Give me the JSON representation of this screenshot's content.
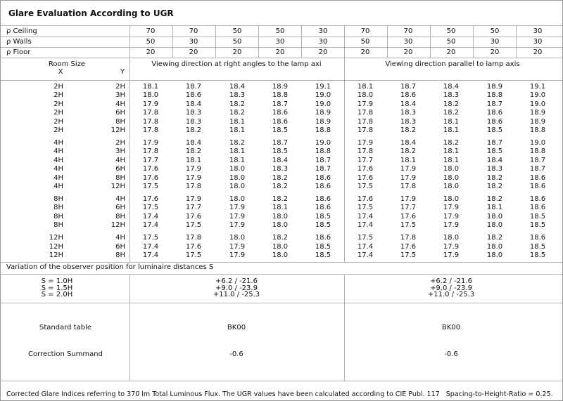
{
  "title": "Glare Evaluation According to UGR",
  "reflectances": [
    {
      "label": "ρ Ceiling",
      "values": [
        "70",
        "70",
        "50",
        "50",
        "30",
        "70",
        "70",
        "50",
        "50",
        "30"
      ]
    },
    {
      "label": "ρ Walls",
      "values": [
        "50",
        "30",
        "50",
        "30",
        "30",
        "50",
        "30",
        "50",
        "30",
        "30"
      ]
    },
    {
      "label": "ρ Floor",
      "values": [
        "20",
        "20",
        "20",
        "20",
        "20",
        "20",
        "20",
        "20",
        "20",
        "20"
      ]
    }
  ],
  "header": {
    "room_size": "Room Size",
    "x": "X",
    "y": "Y",
    "view_right": "Viewing direction at right angles to the lamp axi",
    "view_parallel": "Viewing direction parallel to lamp axis"
  },
  "groups": [
    [
      {
        "x": "2H",
        "y": "2H",
        "values": [
          "18.1",
          "18.7",
          "18.4",
          "18.9",
          "19.1",
          "18.1",
          "18.7",
          "18.4",
          "18.9",
          "19.1"
        ]
      },
      {
        "x": "2H",
        "y": "3H",
        "values": [
          "18.0",
          "18.6",
          "18.3",
          "18.8",
          "19.0",
          "18.0",
          "18.6",
          "18.3",
          "18.8",
          "19.0"
        ]
      },
      {
        "x": "2H",
        "y": "4H",
        "values": [
          "17.9",
          "18.4",
          "18.2",
          "18.7",
          "19.0",
          "17.9",
          "18.4",
          "18.2",
          "18.7",
          "19.0"
        ]
      },
      {
        "x": "2H",
        "y": "6H",
        "values": [
          "17.8",
          "18.3",
          "18.2",
          "18.6",
          "18.9",
          "17.8",
          "18.3",
          "18.2",
          "18.6",
          "18.9"
        ]
      },
      {
        "x": "2H",
        "y": "8H",
        "values": [
          "17.8",
          "18.3",
          "18.1",
          "18.6",
          "18.9",
          "17.8",
          "18.3",
          "18.1",
          "18.6",
          "18.9"
        ]
      },
      {
        "x": "2H",
        "y": "12H",
        "values": [
          "17.8",
          "18.2",
          "18.1",
          "18.5",
          "18.8",
          "17.8",
          "18.2",
          "18.1",
          "18.5",
          "18.8"
        ]
      }
    ],
    [
      {
        "x": "4H",
        "y": "2H",
        "values": [
          "17.9",
          "18.4",
          "18.2",
          "18.7",
          "19.0",
          "17.9",
          "18.4",
          "18.2",
          "18.7",
          "19.0"
        ]
      },
      {
        "x": "4H",
        "y": "3H",
        "values": [
          "17.8",
          "18.2",
          "18.1",
          "18.5",
          "18.8",
          "17.8",
          "18.2",
          "18.1",
          "18.5",
          "18.8"
        ]
      },
      {
        "x": "4H",
        "y": "4H",
        "values": [
          "17.7",
          "18.1",
          "18.1",
          "18.4",
          "18.7",
          "17.7",
          "18.1",
          "18.1",
          "18.4",
          "18.7"
        ]
      },
      {
        "x": "4H",
        "y": "6H",
        "values": [
          "17.6",
          "17.9",
          "18.0",
          "18.3",
          "18.7",
          "17.6",
          "17.9",
          "18.0",
          "18.3",
          "18.7"
        ]
      },
      {
        "x": "4H",
        "y": "8H",
        "values": [
          "17.6",
          "17.9",
          "18.0",
          "18.2",
          "18.6",
          "17.6",
          "17.9",
          "18.0",
          "18.2",
          "18.6"
        ]
      },
      {
        "x": "4H",
        "y": "12H",
        "values": [
          "17.5",
          "17.8",
          "18.0",
          "18.2",
          "18.6",
          "17.5",
          "17.8",
          "18.0",
          "18.2",
          "18.6"
        ]
      }
    ],
    [
      {
        "x": "8H",
        "y": "4H",
        "values": [
          "17.6",
          "17.9",
          "18.0",
          "18.2",
          "18.6",
          "17.6",
          "17.9",
          "18.0",
          "18.2",
          "18.6"
        ]
      },
      {
        "x": "8H",
        "y": "6H",
        "values": [
          "17.5",
          "17.7",
          "17.9",
          "18.1",
          "18.6",
          "17.5",
          "17.7",
          "17.9",
          "18.1",
          "18.6"
        ]
      },
      {
        "x": "8H",
        "y": "8H",
        "values": [
          "17.4",
          "17.6",
          "17.9",
          "18.0",
          "18.5",
          "17.4",
          "17.6",
          "17.9",
          "18.0",
          "18.5"
        ]
      },
      {
        "x": "8H",
        "y": "12H",
        "values": [
          "17.4",
          "17.5",
          "17.9",
          "18.0",
          "18.5",
          "17.4",
          "17.5",
          "17.9",
          "18.0",
          "18.5"
        ]
      }
    ],
    [
      {
        "x": "12H",
        "y": "4H",
        "values": [
          "17.5",
          "17.8",
          "18.0",
          "18.2",
          "18.6",
          "17.5",
          "17.8",
          "18.0",
          "18.2",
          "18.6"
        ]
      },
      {
        "x": "12H",
        "y": "6H",
        "values": [
          "17.4",
          "17.6",
          "17.9",
          "18.0",
          "18.5",
          "17.4",
          "17.6",
          "17.9",
          "18.0",
          "18.5"
        ]
      },
      {
        "x": "12H",
        "y": "8H",
        "values": [
          "17.4",
          "17.5",
          "17.9",
          "18.0",
          "18.5",
          "17.4",
          "17.5",
          "17.9",
          "18.0",
          "18.5"
        ]
      }
    ]
  ],
  "variation": {
    "title": "Variation of the observer position for luminaire distances S",
    "rows": [
      {
        "s": "S = 1.0H",
        "left": "+6.2 / -21.6",
        "right": "+6.2 / -21.6"
      },
      {
        "s": "S = 1.5H",
        "left": "+9.0 / -23.9",
        "right": "+9.0 / -23.9"
      },
      {
        "s": "S = 2.0H",
        "left": "+11.0 / -25.3",
        "right": "+11.0 / -25.3"
      }
    ]
  },
  "standard_table": {
    "label": "Standard table",
    "left": "BK00",
    "right": "BK00"
  },
  "correction": {
    "label": "Correction Summand",
    "left": "-0.6",
    "right": "-0.6"
  },
  "footer": "Corrected Glare Indices referring to 370 lm Total Luminous Flux. The UGR values have been calculated according to CIE Publ. 117   Spacing-to-Height-Ratio = 0.25."
}
